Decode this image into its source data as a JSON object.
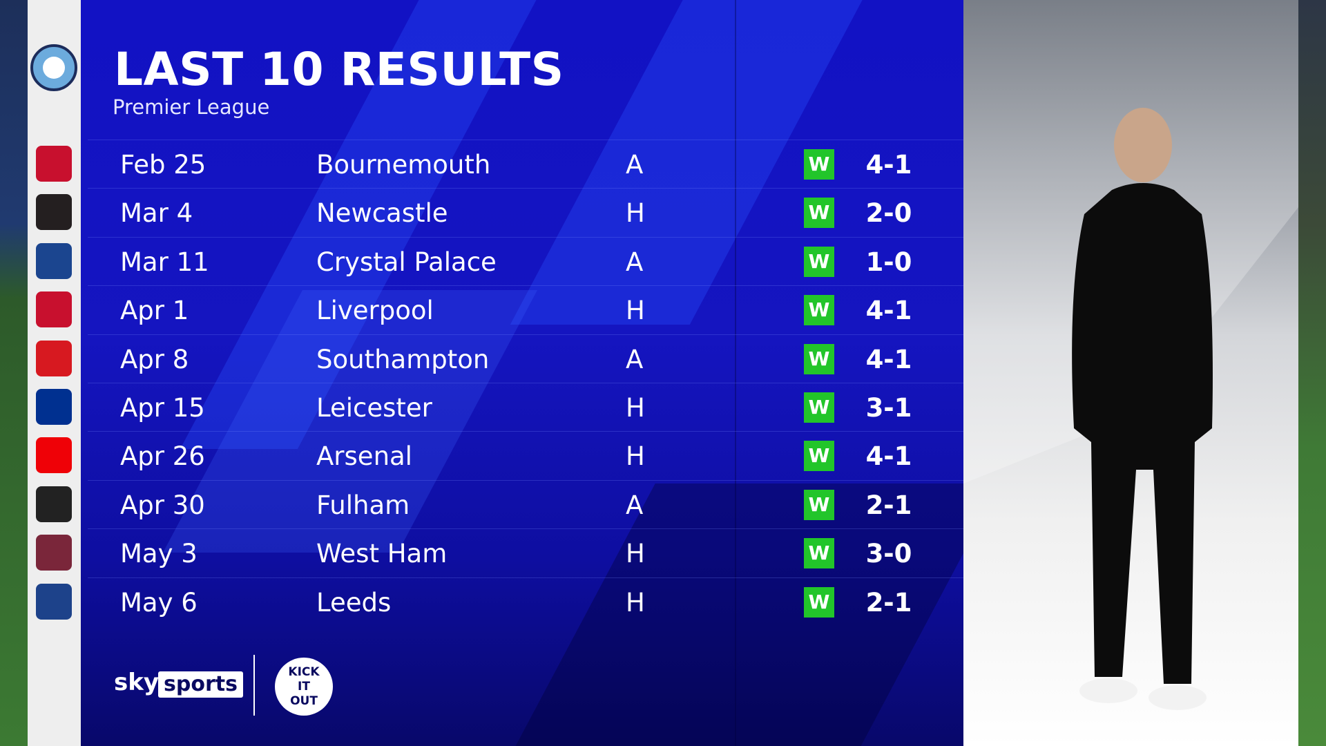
{
  "header": {
    "title": "LAST 10 RESULTS",
    "subtitle": "Premier League",
    "team_crest": "manchester-city-crest"
  },
  "colors": {
    "panel": "#1515c0",
    "win": "#22c52a",
    "text": "#ffffff"
  },
  "results": [
    {
      "date": "Feb 25",
      "opponent": "Bournemouth",
      "venue": "A",
      "result": "W",
      "score": "4-1",
      "crest_color": "#c8102e"
    },
    {
      "date": "Mar 4",
      "opponent": "Newcastle",
      "venue": "H",
      "result": "W",
      "score": "2-0",
      "crest_color": "#241f20"
    },
    {
      "date": "Mar 11",
      "opponent": "Crystal Palace",
      "venue": "A",
      "result": "W",
      "score": "1-0",
      "crest_color": "#1b458f"
    },
    {
      "date": "Apr 1",
      "opponent": "Liverpool",
      "venue": "H",
      "result": "W",
      "score": "4-1",
      "crest_color": "#c8102e"
    },
    {
      "date": "Apr 8",
      "opponent": "Southampton",
      "venue": "A",
      "result": "W",
      "score": "4-1",
      "crest_color": "#d71920"
    },
    {
      "date": "Apr 15",
      "opponent": "Leicester",
      "venue": "H",
      "result": "W",
      "score": "3-1",
      "crest_color": "#003090"
    },
    {
      "date": "Apr 26",
      "opponent": "Arsenal",
      "venue": "H",
      "result": "W",
      "score": "4-1",
      "crest_color": "#ef0107"
    },
    {
      "date": "Apr 30",
      "opponent": "Fulham",
      "venue": "A",
      "result": "W",
      "score": "2-1",
      "crest_color": "#222222"
    },
    {
      "date": "May 3",
      "opponent": "West Ham",
      "venue": "H",
      "result": "W",
      "score": "3-0",
      "crest_color": "#7a263a"
    },
    {
      "date": "May 6",
      "opponent": "Leeds",
      "venue": "H",
      "result": "W",
      "score": "2-1",
      "crest_color": "#1d428a"
    }
  ],
  "footer": {
    "sky": "sky",
    "sports": "sports",
    "kick_it_out": "KICK IT OUT"
  }
}
